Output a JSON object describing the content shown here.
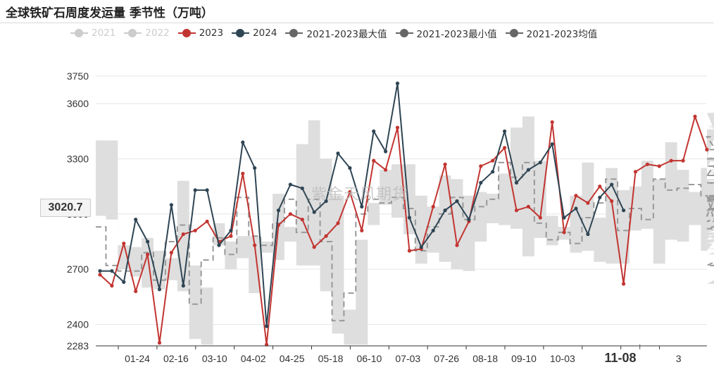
{
  "title": "全球铁矿石周度发运量 季节性（万吨）",
  "watermark": "紫金天风期货",
  "legend": [
    {
      "label": "2021",
      "color": "#cccccc",
      "off": true
    },
    {
      "label": "2022",
      "color": "#cccccc",
      "off": true
    },
    {
      "label": "2023",
      "color": "#c23531",
      "off": false
    },
    {
      "label": "2024",
      "color": "#2f4554",
      "off": false
    },
    {
      "label": "2021-2023最大值",
      "color": "#666666",
      "off": false
    },
    {
      "label": "2021-2023最小值",
      "color": "#666666",
      "off": false
    },
    {
      "label": "2021-2023均值",
      "color": "#666666",
      "off": false
    }
  ],
  "pointer": {
    "y_value": "3020.7",
    "x_value": "11-08"
  },
  "chart_data": {
    "type": "line",
    "y_axis": {
      "min": 2283,
      "max": 3750,
      "ticks": [
        2283,
        2400,
        2700,
        3000,
        3300,
        3600,
        3750
      ]
    },
    "x_ticks": [
      "01-24",
      "02-16",
      "03-10",
      "04-02",
      "04-25",
      "05-18",
      "06-10",
      "07-03",
      "07-26",
      "08-18",
      "09-10",
      "10-03",
      "1",
      "11-08",
      "3"
    ],
    "band": {
      "max": [
        3400,
        3400,
        2830,
        2820,
        2870,
        2800,
        2760,
        3180,
        2720,
        2600,
        2950,
        2850,
        2880,
        2880,
        2850,
        3110,
        2930,
        3380,
        3510,
        3300,
        3100,
        2480,
        2860,
        3060,
        3240,
        3270,
        3270,
        3100,
        3040,
        3210,
        3190,
        3100,
        3120,
        3110,
        3220,
        3470,
        3530,
        3290,
        2990,
        2930,
        3100,
        3280,
        2980,
        3250,
        3130,
        3150,
        3290,
        3190,
        3390,
        3240,
        3120,
        3250,
        3310,
        3550,
        3550,
        3020,
        3090,
        3240,
        3180,
        3080,
        3230,
        3080,
        2990,
        3220,
        3240,
        3290,
        3150,
        3480,
        3270,
        3290,
        3470,
        3290,
        3460
      ],
      "min": [
        2990,
        2970,
        2700,
        2660,
        2600,
        2590,
        2640,
        2580,
        2320,
        2290,
        2830,
        2700,
        2760,
        2570,
        2790,
        2750,
        2850,
        2720,
        2720,
        2580,
        2350,
        2290,
        2290,
        2940,
        3050,
        2980,
        2890,
        2730,
        2790,
        2740,
        2700,
        2690,
        2850,
        2950,
        2940,
        2920,
        2770,
        2870,
        2830,
        2860,
        2790,
        2800,
        2740,
        2730,
        2730,
        2910,
        2920,
        2730,
        2860,
        2850,
        2940,
        2800,
        2840,
        2860,
        3010,
        2790,
        2780,
        2860,
        2910,
        2890,
        2880,
        2640,
        2620,
        3010,
        2940,
        2810,
        2920,
        2900,
        3120,
        3040,
        2880,
        3230,
        3190
      ],
      "mean": [
        2930,
        2720,
        2690,
        2690,
        2790,
        2640,
        2850,
        2940,
        2510,
        2750,
        2870,
        2780,
        3090,
        2880,
        2830,
        2950,
        3080,
        2900,
        3080,
        2850,
        2420,
        2570,
        3000,
        3080,
        3060,
        3090,
        3030,
        2800,
        2930,
        3000,
        3090,
        2970,
        3040,
        3080,
        3280,
        3200,
        3280,
        2950,
        2860,
        2900,
        2840,
        2980,
        3060,
        3190,
        2910,
        3030,
        2970,
        3190,
        3130,
        3140,
        3160,
        3100,
        2990,
        3210,
        3420,
        3090,
        2960,
        3080,
        3030,
        2920,
        3090,
        3080,
        2720,
        3070,
        3170,
        3090,
        3100,
        3020,
        3210,
        3260,
        3300,
        3300,
        3350
      ]
    },
    "series": [
      {
        "name": "2023",
        "color": "#c23531",
        "values": [
          2670,
          2610,
          2840,
          2580,
          2780,
          2300,
          2790,
          2890,
          2910,
          2960,
          2850,
          2880,
          3220,
          2830,
          2290,
          2940,
          3000,
          2970,
          2820,
          2880,
          2950,
          3120,
          2910,
          3290,
          3240,
          3470,
          2800,
          2810,
          3040,
          3270,
          2830,
          2960,
          3260,
          3290,
          3360,
          3020,
          3040,
          2980,
          3500,
          2900,
          3100,
          3060,
          3150,
          3070,
          2620,
          3230,
          3270,
          3260,
          3290,
          3290,
          3530,
          3350
        ]
      },
      {
        "name": "2024",
        "color": "#2f4554",
        "values": [
          2690,
          2690,
          2630,
          2970,
          2850,
          2590,
          3050,
          2610,
          3130,
          3130,
          2830,
          2910,
          3390,
          3250,
          2390,
          3020,
          3160,
          3140,
          3010,
          3070,
          3330,
          3250,
          3040,
          3450,
          3340,
          3710,
          2980,
          2820,
          2910,
          3020,
          3070,
          2970,
          3170,
          3230,
          3450,
          3170,
          3240,
          3280,
          3380,
          2980,
          3030,
          2890,
          3090,
          3160,
          3020
        ]
      }
    ]
  }
}
